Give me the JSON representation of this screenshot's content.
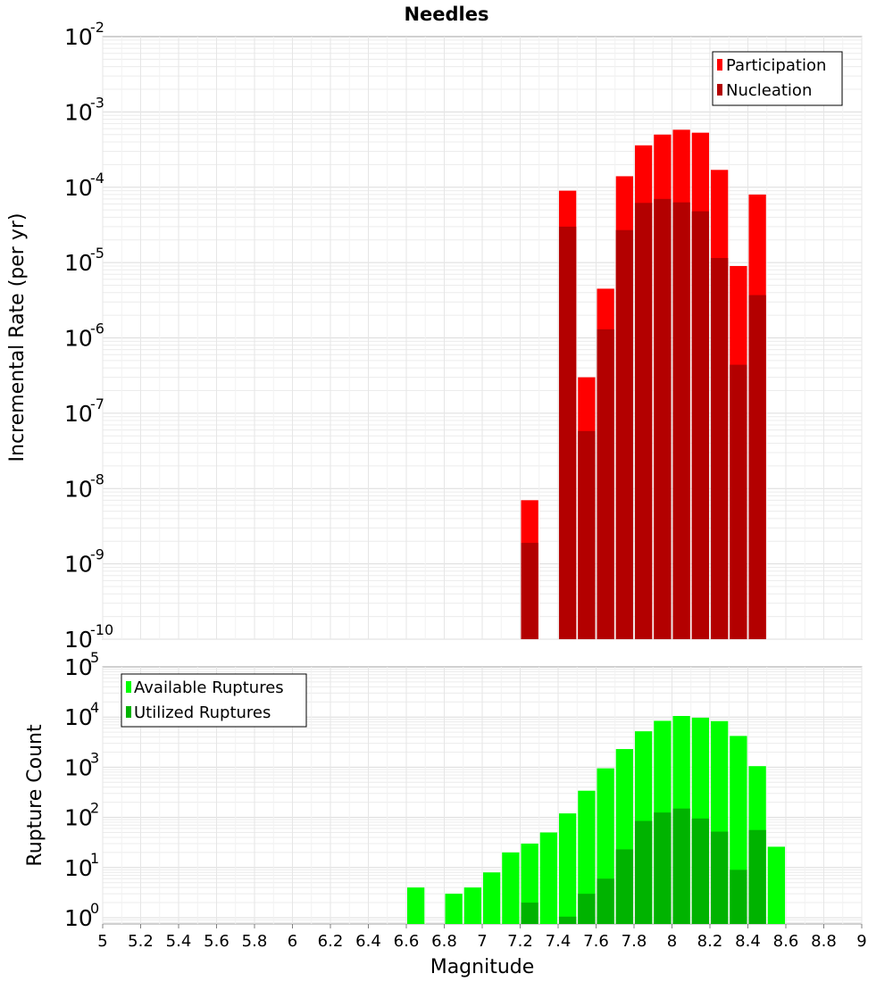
{
  "chart_data": [
    {
      "type": "bar",
      "panel": "top",
      "title": "Needles",
      "xlabel": "Magnitude",
      "ylabel": "Incremental Rate (per yr)",
      "yscale": "log",
      "ylim": [
        1e-10,
        0.01
      ],
      "xlim": [
        5,
        9
      ],
      "grid": true,
      "legend_position": "top-right",
      "y_ticks": [
        {
          "base": "10",
          "exp": "-2"
        },
        {
          "base": "10",
          "exp": "-3"
        },
        {
          "base": "10",
          "exp": "-4"
        },
        {
          "base": "10",
          "exp": "-5"
        },
        {
          "base": "10",
          "exp": "-6"
        },
        {
          "base": "10",
          "exp": "-7"
        },
        {
          "base": "10",
          "exp": "-8"
        },
        {
          "base": "10",
          "exp": "-9"
        },
        {
          "base": "10",
          "exp": "-10"
        }
      ],
      "x": [
        7.25,
        7.45,
        7.55,
        7.65,
        7.75,
        7.85,
        7.95,
        8.05,
        8.15,
        8.25,
        8.35,
        8.45
      ],
      "series": [
        {
          "name": "Participation",
          "color": "#ff0000",
          "values": [
            7e-09,
            9e-05,
            3e-07,
            4.5e-06,
            0.00014,
            0.00036,
            0.0005,
            0.00058,
            0.00053,
            0.00017,
            9e-06,
            8e-05
          ]
        },
        {
          "name": "Nucleation",
          "color": "#b30000",
          "values": [
            1.9e-09,
            3e-05,
            5.8e-08,
            1.3e-06,
            2.7e-05,
            6.2e-05,
            7e-05,
            6.3e-05,
            4.8e-05,
            1.15e-05,
            4.4e-07,
            3.7e-06
          ]
        }
      ]
    },
    {
      "type": "bar",
      "panel": "bottom",
      "xlabel": "Magnitude",
      "ylabel": "Rupture Count",
      "yscale": "log",
      "ylim": [
        0.75,
        100000
      ],
      "xlim": [
        5,
        9
      ],
      "grid": true,
      "legend_position": "top-left",
      "y_ticks": [
        {
          "base": "10",
          "exp": "5"
        },
        {
          "base": "10",
          "exp": "4"
        },
        {
          "base": "10",
          "exp": "3"
        },
        {
          "base": "10",
          "exp": "2"
        },
        {
          "base": "10",
          "exp": "1"
        },
        {
          "base": "10",
          "exp": "0"
        }
      ],
      "x_ticks": [
        "5",
        "5.2",
        "5.4",
        "5.6",
        "5.8",
        "6",
        "6.2",
        "6.4",
        "6.6",
        "6.8",
        "7",
        "7.2",
        "7.4",
        "7.6",
        "7.8",
        "8",
        "8.2",
        "8.4",
        "8.6",
        "8.8",
        "9"
      ],
      "x": [
        6.65,
        6.75,
        6.85,
        6.95,
        7.05,
        7.15,
        7.25,
        7.35,
        7.45,
        7.55,
        7.65,
        7.75,
        7.85,
        7.95,
        8.05,
        8.15,
        8.25,
        8.35,
        8.45,
        8.55
      ],
      "series": [
        {
          "name": "Available Ruptures",
          "color": "#00ff00",
          "values": [
            4,
            null,
            3,
            4,
            8,
            20,
            30,
            50,
            120,
            340,
            950,
            2300,
            5200,
            8400,
            10500,
            9700,
            8300,
            4200,
            1050,
            26
          ]
        },
        {
          "name": "Utilized Ruptures",
          "color": "#00b300",
          "values": [
            null,
            null,
            null,
            null,
            null,
            null,
            2,
            null,
            1.05,
            3,
            6,
            23,
            85,
            125,
            150,
            95,
            52,
            9,
            56,
            null
          ]
        }
      ]
    }
  ]
}
